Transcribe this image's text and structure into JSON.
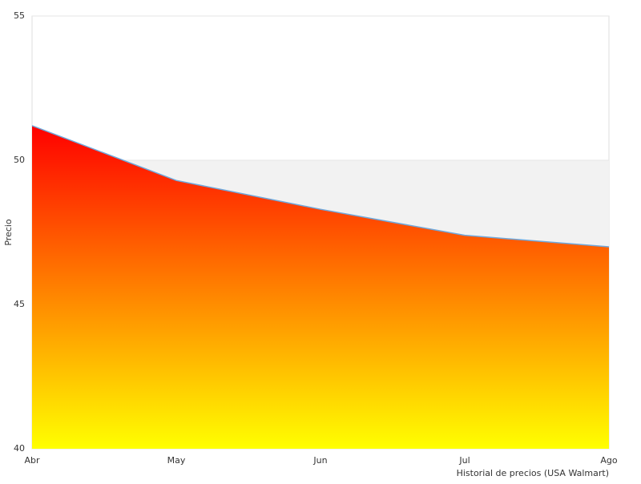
{
  "chart_data": {
    "type": "area",
    "x_label": "Historial de precios (USA Walmart)",
    "y_label": "Precio",
    "categories": [
      "Abr",
      "May",
      "Jun",
      "Jul",
      "Ago"
    ],
    "values": [
      51.2,
      49.3,
      48.3,
      47.4,
      47.0
    ],
    "line_color": "#6fa8dc",
    "gradient": [
      "#ff0000",
      "#ffff00"
    ],
    "ylim": [
      40,
      55
    ],
    "yticks": [
      40,
      45,
      50,
      55
    ],
    "band_color": "#f2f2f2"
  }
}
